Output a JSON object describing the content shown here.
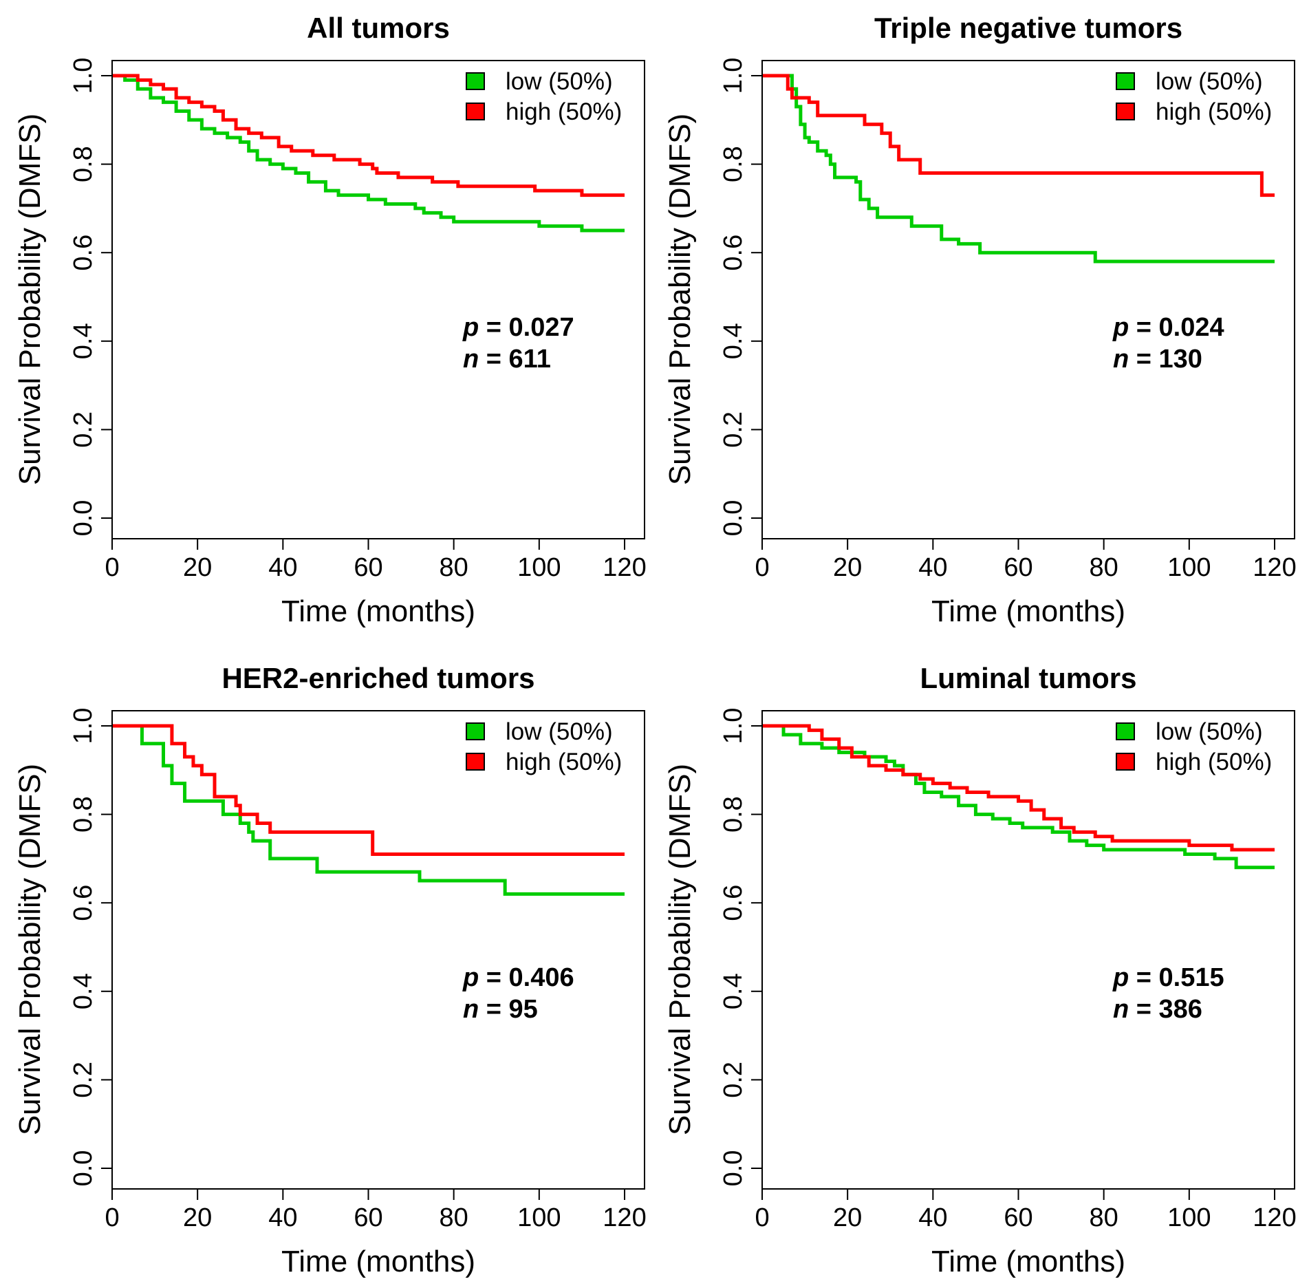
{
  "chart_data": [
    {
      "type": "line",
      "title": "All tumors",
      "xlabel": "Time (months)",
      "ylabel": "Survival Probability (DMFS)",
      "xlim": [
        0,
        120
      ],
      "ylim": [
        0,
        1
      ],
      "xticks": [
        "0",
        "20",
        "40",
        "60",
        "80",
        "100",
        "120"
      ],
      "yticks": [
        "0.0",
        "0.2",
        "0.4",
        "0.6",
        "0.8",
        "1.0"
      ],
      "legend_position": "top-right",
      "series": [
        {
          "name": "low (50%)",
          "color": "#00cc00",
          "points": [
            [
              0,
              1.0
            ],
            [
              3,
              0.99
            ],
            [
              6,
              0.97
            ],
            [
              9,
              0.95
            ],
            [
              12,
              0.94
            ],
            [
              15,
              0.92
            ],
            [
              18,
              0.9
            ],
            [
              21,
              0.88
            ],
            [
              24,
              0.87
            ],
            [
              27,
              0.86
            ],
            [
              30,
              0.85
            ],
            [
              32,
              0.83
            ],
            [
              34,
              0.81
            ],
            [
              37,
              0.8
            ],
            [
              40,
              0.79
            ],
            [
              43,
              0.78
            ],
            [
              46,
              0.76
            ],
            [
              50,
              0.74
            ],
            [
              53,
              0.73
            ],
            [
              57,
              0.73
            ],
            [
              60,
              0.72
            ],
            [
              64,
              0.71
            ],
            [
              68,
              0.71
            ],
            [
              71,
              0.7
            ],
            [
              73,
              0.69
            ],
            [
              77,
              0.68
            ],
            [
              80,
              0.67
            ],
            [
              84,
              0.67
            ],
            [
              96,
              0.67
            ],
            [
              100,
              0.66
            ],
            [
              110,
              0.65
            ],
            [
              120,
              0.65
            ]
          ]
        },
        {
          "name": "high (50%)",
          "color": "#ff0000",
          "points": [
            [
              0,
              1.0
            ],
            [
              6,
              0.99
            ],
            [
              9,
              0.98
            ],
            [
              12,
              0.97
            ],
            [
              15,
              0.95
            ],
            [
              18,
              0.94
            ],
            [
              21,
              0.93
            ],
            [
              24,
              0.92
            ],
            [
              26,
              0.9
            ],
            [
              29,
              0.88
            ],
            [
              32,
              0.87
            ],
            [
              35,
              0.86
            ],
            [
              39,
              0.84
            ],
            [
              42,
              0.83
            ],
            [
              47,
              0.82
            ],
            [
              52,
              0.81
            ],
            [
              56,
              0.81
            ],
            [
              58,
              0.8
            ],
            [
              61,
              0.79
            ],
            [
              62,
              0.78
            ],
            [
              67,
              0.77
            ],
            [
              72,
              0.77
            ],
            [
              75,
              0.76
            ],
            [
              81,
              0.75
            ],
            [
              89,
              0.75
            ],
            [
              99,
              0.74
            ],
            [
              110,
              0.73
            ],
            [
              116,
              0.73
            ],
            [
              120,
              0.73
            ]
          ]
        }
      ],
      "annotations": {
        "p": "0.027",
        "n": "611"
      }
    },
    {
      "type": "line",
      "title": "Triple negative tumors",
      "xlabel": "Time (months)",
      "ylabel": "Survival Probability (DMFS)",
      "xlim": [
        0,
        120
      ],
      "ylim": [
        0,
        1
      ],
      "xticks": [
        "0",
        "20",
        "40",
        "60",
        "80",
        "100",
        "120"
      ],
      "yticks": [
        "0.0",
        "0.2",
        "0.4",
        "0.6",
        "0.8",
        "1.0"
      ],
      "legend_position": "top-right",
      "series": [
        {
          "name": "low (50%)",
          "color": "#00cc00",
          "points": [
            [
              0,
              1.0
            ],
            [
              7,
              0.97
            ],
            [
              8,
              0.93
            ],
            [
              9,
              0.89
            ],
            [
              10,
              0.86
            ],
            [
              11,
              0.85
            ],
            [
              13,
              0.83
            ],
            [
              15,
              0.82
            ],
            [
              16,
              0.8
            ],
            [
              17,
              0.77
            ],
            [
              22,
              0.76
            ],
            [
              23,
              0.72
            ],
            [
              25,
              0.7
            ],
            [
              27,
              0.68
            ],
            [
              33,
              0.68
            ],
            [
              35,
              0.66
            ],
            [
              42,
              0.63
            ],
            [
              46,
              0.62
            ],
            [
              51,
              0.6
            ],
            [
              78,
              0.58
            ],
            [
              120,
              0.58
            ]
          ]
        },
        {
          "name": "high (50%)",
          "color": "#ff0000",
          "points": [
            [
              0,
              1.0
            ],
            [
              6,
              0.97
            ],
            [
              7,
              0.95
            ],
            [
              11,
              0.94
            ],
            [
              13,
              0.91
            ],
            [
              20,
              0.91
            ],
            [
              24,
              0.89
            ],
            [
              28,
              0.87
            ],
            [
              30,
              0.84
            ],
            [
              32,
              0.81
            ],
            [
              37,
              0.78
            ],
            [
              116,
              0.78
            ],
            [
              117,
              0.73
            ],
            [
              120,
              0.73
            ]
          ]
        }
      ],
      "annotations": {
        "p": "0.024",
        "n": "130"
      }
    },
    {
      "type": "line",
      "title": "HER2-enriched tumors",
      "xlabel": "Time (months)",
      "ylabel": "Survival Probability (DMFS)",
      "xlim": [
        0,
        120
      ],
      "ylim": [
        0,
        1
      ],
      "xticks": [
        "0",
        "20",
        "40",
        "60",
        "80",
        "100",
        "120"
      ],
      "yticks": [
        "0.0",
        "0.2",
        "0.4",
        "0.6",
        "0.8",
        "1.0"
      ],
      "legend_position": "top-right",
      "series": [
        {
          "name": "low (50%)",
          "color": "#00cc00",
          "points": [
            [
              0,
              1.0
            ],
            [
              7,
              0.96
            ],
            [
              12,
              0.91
            ],
            [
              14,
              0.87
            ],
            [
              17,
              0.83
            ],
            [
              26,
              0.8
            ],
            [
              30,
              0.78
            ],
            [
              32,
              0.76
            ],
            [
              33,
              0.74
            ],
            [
              37,
              0.7
            ],
            [
              48,
              0.67
            ],
            [
              72,
              0.65
            ],
            [
              92,
              0.62
            ],
            [
              120,
              0.62
            ]
          ]
        },
        {
          "name": "high (50%)",
          "color": "#ff0000",
          "points": [
            [
              0,
              1.0
            ],
            [
              14,
              0.96
            ],
            [
              17,
              0.93
            ],
            [
              19,
              0.91
            ],
            [
              21,
              0.89
            ],
            [
              24,
              0.84
            ],
            [
              29,
              0.82
            ],
            [
              30,
              0.8
            ],
            [
              34,
              0.78
            ],
            [
              37,
              0.76
            ],
            [
              61,
              0.71
            ],
            [
              120,
              0.71
            ]
          ]
        }
      ],
      "annotations": {
        "p": "0.406",
        "n": "95"
      }
    },
    {
      "type": "line",
      "title": "Luminal tumors",
      "xlabel": "Time (months)",
      "ylabel": "Survival Probability (DMFS)",
      "xlim": [
        0,
        120
      ],
      "ylim": [
        0,
        1
      ],
      "xticks": [
        "0",
        "20",
        "40",
        "60",
        "80",
        "100",
        "120"
      ],
      "yticks": [
        "0.0",
        "0.2",
        "0.4",
        "0.6",
        "0.8",
        "1.0"
      ],
      "legend_position": "top-right",
      "series": [
        {
          "name": "low (50%)",
          "color": "#00cc00",
          "points": [
            [
              0,
              1.0
            ],
            [
              5,
              0.98
            ],
            [
              9,
              0.96
            ],
            [
              14,
              0.95
            ],
            [
              18,
              0.94
            ],
            [
              24,
              0.93
            ],
            [
              29,
              0.92
            ],
            [
              31,
              0.91
            ],
            [
              33,
              0.89
            ],
            [
              36,
              0.87
            ],
            [
              38,
              0.85
            ],
            [
              42,
              0.84
            ],
            [
              46,
              0.82
            ],
            [
              50,
              0.8
            ],
            [
              54,
              0.79
            ],
            [
              58,
              0.78
            ],
            [
              61,
              0.77
            ],
            [
              68,
              0.76
            ],
            [
              72,
              0.74
            ],
            [
              76,
              0.73
            ],
            [
              80,
              0.72
            ],
            [
              94,
              0.72
            ],
            [
              99,
              0.71
            ],
            [
              106,
              0.7
            ],
            [
              111,
              0.68
            ],
            [
              120,
              0.68
            ]
          ]
        },
        {
          "name": "high (50%)",
          "color": "#ff0000",
          "points": [
            [
              0,
              1.0
            ],
            [
              11,
              0.99
            ],
            [
              14,
              0.97
            ],
            [
              18,
              0.95
            ],
            [
              21,
              0.93
            ],
            [
              25,
              0.91
            ],
            [
              29,
              0.9
            ],
            [
              33,
              0.89
            ],
            [
              37,
              0.88
            ],
            [
              40,
              0.87
            ],
            [
              44,
              0.86
            ],
            [
              48,
              0.85
            ],
            [
              53,
              0.84
            ],
            [
              60,
              0.83
            ],
            [
              63,
              0.81
            ],
            [
              66,
              0.79
            ],
            [
              70,
              0.77
            ],
            [
              73,
              0.76
            ],
            [
              78,
              0.75
            ],
            [
              82,
              0.74
            ],
            [
              100,
              0.73
            ],
            [
              110,
              0.72
            ],
            [
              120,
              0.72
            ]
          ]
        }
      ],
      "annotations": {
        "p": "0.515",
        "n": "386"
      }
    }
  ]
}
